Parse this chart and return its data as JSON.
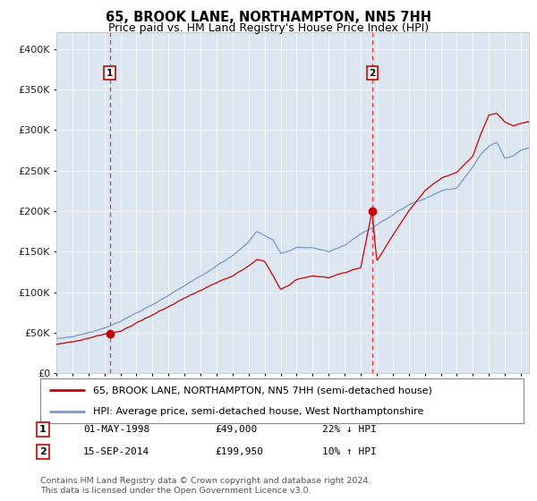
{
  "title": "65, BROOK LANE, NORTHAMPTON, NN5 7HH",
  "subtitle": "Price paid vs. HM Land Registry's House Price Index (HPI)",
  "title_fontsize": 10.5,
  "subtitle_fontsize": 9,
  "background_color": "#dce6f0",
  "plot_bg_color": "#dce6f0",
  "fig_bg_color": "#ffffff",
  "legend1": "65, BROOK LANE, NORTHAMPTON, NN5 7HH (semi-detached house)",
  "legend2": "HPI: Average price, semi-detached house, West Northamptonshire",
  "sale1_label": "1",
  "sale1_date": "01-MAY-1998",
  "sale1_price": "£49,000",
  "sale1_hpi": "22% ↓ HPI",
  "sale1_year": 1998.33,
  "sale1_value": 49000,
  "sale2_label": "2",
  "sale2_date": "15-SEP-2014",
  "sale2_price": "£199,950",
  "sale2_hpi": "10% ↑ HPI",
  "sale2_year": 2014.71,
  "sale2_value": 199950,
  "red_line_color": "#cc0000",
  "blue_line_color": "#7799cc",
  "dashed_line_color": "#ee3333",
  "ylabel_color": "#222222",
  "footer": "Contains HM Land Registry data © Crown copyright and database right 2024.\nThis data is licensed under the Open Government Licence v3.0.",
  "ylim": [
    0,
    420000
  ],
  "xlim_start": 1995.0,
  "xlim_end": 2024.5,
  "hpi_anchors_x": [
    1995.0,
    1996.0,
    1997.0,
    1998.0,
    1999.0,
    2000.0,
    2001.0,
    2002.0,
    2003.0,
    2004.0,
    2005.0,
    2006.0,
    2007.0,
    2007.5,
    2008.5,
    2009.0,
    2009.5,
    2010.0,
    2011.0,
    2012.0,
    2013.0,
    2014.0,
    2015.0,
    2016.0,
    2017.0,
    2018.0,
    2019.0,
    2020.0,
    2021.0,
    2021.5,
    2022.0,
    2022.5,
    2023.0,
    2023.5,
    2024.0,
    2024.5
  ],
  "hpi_anchors_y": [
    42000,
    45000,
    50000,
    56000,
    64000,
    74000,
    84000,
    96000,
    108000,
    120000,
    132000,
    145000,
    162000,
    175000,
    165000,
    148000,
    150000,
    155000,
    155000,
    150000,
    158000,
    172000,
    183000,
    195000,
    208000,
    215000,
    225000,
    228000,
    255000,
    270000,
    280000,
    285000,
    265000,
    268000,
    275000,
    278000
  ],
  "prop_anchors_x": [
    1995.0,
    1996.0,
    1997.0,
    1997.5,
    1998.0,
    1998.33,
    1999.0,
    2000.0,
    2001.0,
    2002.0,
    2003.0,
    2004.0,
    2005.0,
    2006.0,
    2007.0,
    2007.5,
    2008.0,
    2009.0,
    2009.5,
    2010.0,
    2011.0,
    2012.0,
    2013.0,
    2014.0,
    2014.71,
    2015.0,
    2016.0,
    2017.0,
    2018.0,
    2019.0,
    2020.0,
    2021.0,
    2021.5,
    2022.0,
    2022.5,
    2023.0,
    2023.5,
    2024.0,
    2024.5
  ],
  "prop_anchors_y": [
    36000,
    39000,
    43000,
    46000,
    48000,
    49000,
    52000,
    62000,
    72000,
    82000,
    93000,
    102000,
    112000,
    120000,
    132000,
    140000,
    138000,
    104000,
    108000,
    116000,
    120000,
    118000,
    124000,
    130000,
    199950,
    138000,
    170000,
    200000,
    225000,
    240000,
    248000,
    268000,
    295000,
    318000,
    320000,
    310000,
    305000,
    308000,
    310000
  ]
}
